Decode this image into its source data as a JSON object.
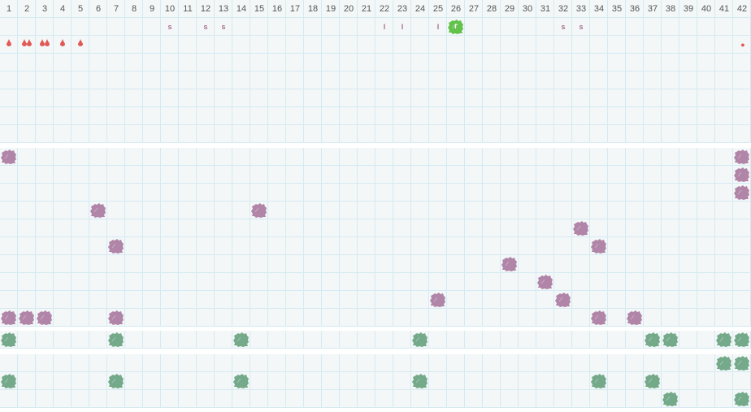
{
  "columns": [
    1,
    2,
    3,
    4,
    5,
    6,
    7,
    8,
    9,
    10,
    11,
    12,
    13,
    14,
    15,
    16,
    17,
    18,
    19,
    20,
    21,
    22,
    23,
    24,
    25,
    26,
    27,
    28,
    29,
    30,
    31,
    32,
    33,
    34,
    35,
    36,
    37,
    38,
    39,
    40,
    41,
    42
  ],
  "colors": {
    "purple": "#b085a8",
    "green": "#74a98a",
    "highlight_green": "#62c24c",
    "drop_red": "#e05a55",
    "letter": "#a9708f",
    "grid": "#d5eaf2",
    "background": "#f3f7f8"
  },
  "letter_row": [
    {
      "col": 10,
      "text": "s"
    },
    {
      "col": 12,
      "text": "s"
    },
    {
      "col": 13,
      "text": "s"
    },
    {
      "col": 22,
      "text": "I"
    },
    {
      "col": 23,
      "text": "I"
    },
    {
      "col": 25,
      "text": "I"
    },
    {
      "col": 26,
      "text": "r",
      "highlight": true
    },
    {
      "col": 32,
      "text": "s"
    },
    {
      "col": 33,
      "text": "s"
    }
  ],
  "drop_row": [
    {
      "col": 1,
      "count": 1
    },
    {
      "col": 2,
      "count": 2
    },
    {
      "col": 3,
      "count": 2
    },
    {
      "col": 4,
      "count": 1
    },
    {
      "col": 5,
      "count": 1
    },
    {
      "col": 42,
      "icon": "dot-icon"
    }
  ],
  "purple_section": {
    "rows": [
      [
        1,
        42
      ],
      [
        42
      ],
      [
        42
      ],
      [
        6,
        15
      ],
      [
        33
      ],
      [
        7,
        34
      ],
      [
        29
      ],
      [
        31
      ],
      [
        25,
        32
      ],
      [
        1,
        2,
        3,
        7,
        34,
        36
      ]
    ]
  },
  "green_single_row": [
    1,
    7,
    14,
    24,
    37,
    38,
    41,
    42
  ],
  "green_section": {
    "rows": [
      [
        41,
        42
      ],
      [
        1,
        7,
        14,
        24,
        34,
        37
      ],
      [
        38,
        42
      ]
    ]
  }
}
